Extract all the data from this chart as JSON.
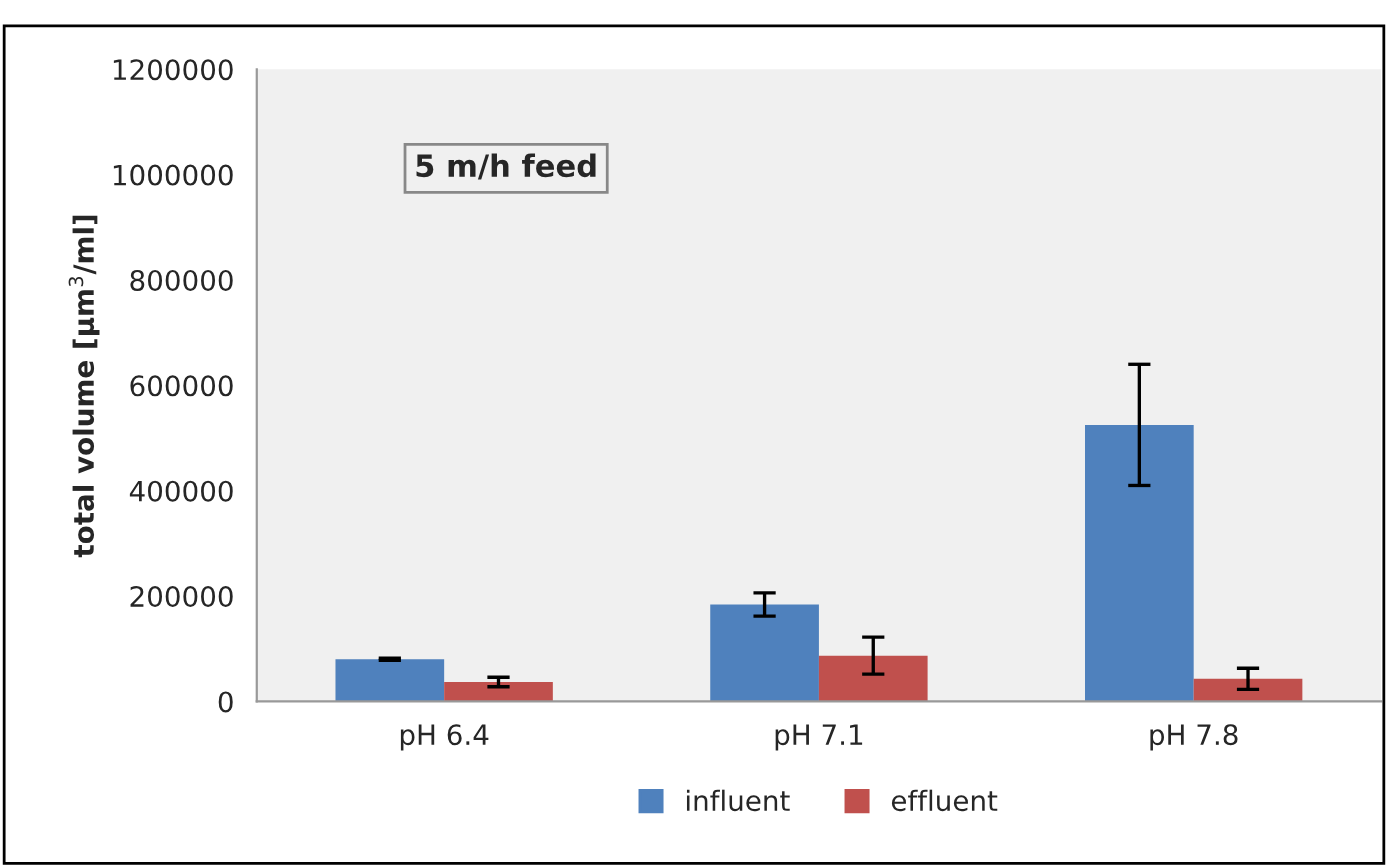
{
  "chart_data": {
    "type": "bar",
    "ylabel": "total volume [µm$^{3}$/ml]",
    "categories": [
      "pH 6.4",
      "pH 7.1",
      "pH 7.8"
    ],
    "series": [
      {
        "name": "influent",
        "color": "#4f81bd",
        "values": [
          80000,
          184000,
          525000
        ],
        "errors": [
          2000,
          22000,
          115000
        ]
      },
      {
        "name": "effluent",
        "color": "#c0504d",
        "values": [
          37000,
          87000,
          43000
        ],
        "errors": [
          9000,
          35000,
          20000
        ]
      }
    ],
    "ylim": [
      0,
      1200000
    ],
    "yticks": [
      0,
      200000,
      400000,
      600000,
      800000,
      1000000,
      1200000
    ],
    "grid": false,
    "legend": "bottom",
    "annotations": [
      "5 m/h feed"
    ]
  }
}
